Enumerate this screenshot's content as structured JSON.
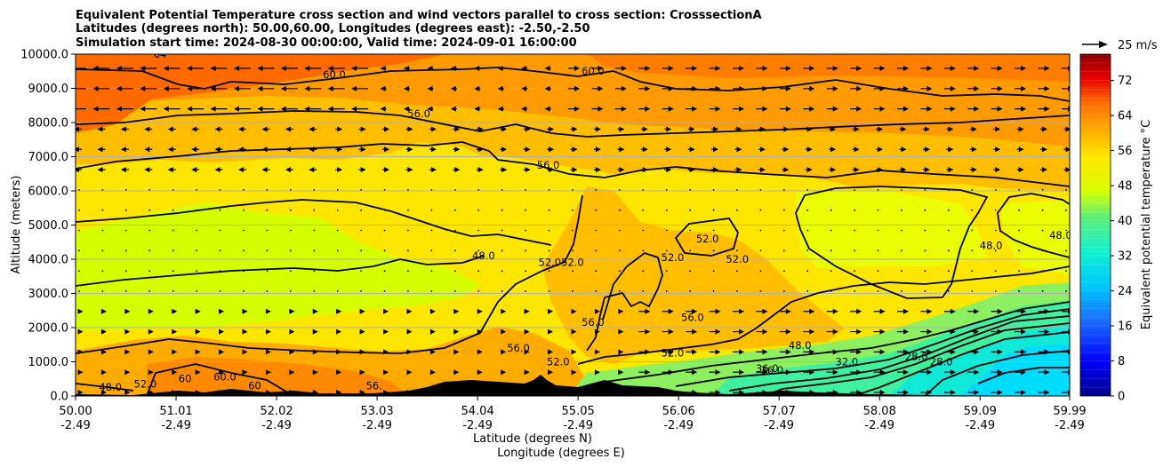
{
  "chart_data": {
    "type": "heatmap",
    "title_lines": [
      "Equivalent Potential Temperature cross section and wind vectors parallel to cross section: CrosssectionA",
      "Latitudes (degrees north): 50.00,60.00, Longitudes (degrees east): -2.50,-2.50",
      "Simulation start time: 2024-08-30 00:00:00, Valid time: 2024-09-01 16:00:00"
    ],
    "ylabel": "Altitude (meters)",
    "xlabel_lat": "Latitude (degrees N)",
    "xlabel_lon": "Longitude (degrees E)",
    "ylim": [
      0,
      10000
    ],
    "xlim": [
      50.0,
      59.99
    ],
    "y_ticks": [
      "0.0",
      "1000.0",
      "2000.0",
      "3000.0",
      "4000.0",
      "5000.0",
      "6000.0",
      "7000.0",
      "8000.0",
      "9000.0",
      "10000.0"
    ],
    "x_ticks": [
      {
        "lat": "50.00",
        "lon": "-2.49"
      },
      {
        "lat": "51.01",
        "lon": "-2.49"
      },
      {
        "lat": "52.02",
        "lon": "-2.49"
      },
      {
        "lat": "53.03",
        "lon": "-2.49"
      },
      {
        "lat": "54.04",
        "lon": "-2.49"
      },
      {
        "lat": "55.05",
        "lon": "-2.49"
      },
      {
        "lat": "56.06",
        "lon": "-2.49"
      },
      {
        "lat": "57.07",
        "lon": "-2.49"
      },
      {
        "lat": "58.08",
        "lon": "-2.49"
      },
      {
        "lat": "59.09",
        "lon": "-2.49"
      },
      {
        "lat": "59.99",
        "lon": "-2.49"
      }
    ],
    "colorbar": {
      "label": "Equivalent potential temperature $^\\circ$C",
      "label_display": "Equivalent potential temperature °C",
      "ticks": [
        "0",
        "8",
        "16",
        "24",
        "32",
        "40",
        "48",
        "56",
        "64",
        "72"
      ],
      "range": [
        0,
        78
      ]
    },
    "quiver_key": "25 m/s",
    "contour_labels": [
      {
        "text": "64",
        "lat": 50.85,
        "alt": 9900
      },
      {
        "text": "60.0",
        "lat": 52.6,
        "alt": 9300
      },
      {
        "text": "56.0",
        "lat": 53.45,
        "alt": 8150
      },
      {
        "text": "60.0",
        "lat": 55.2,
        "alt": 9400
      },
      {
        "text": "56.0",
        "lat": 54.75,
        "alt": 6650
      },
      {
        "text": "48.0",
        "lat": 54.1,
        "alt": 4000
      },
      {
        "text": "52.052.0",
        "lat": 54.88,
        "alt": 3800
      },
      {
        "text": "52.0",
        "lat": 56.35,
        "alt": 4500
      },
      {
        "text": "52.0",
        "lat": 56.0,
        "alt": 3950
      },
      {
        "text": "52.0",
        "lat": 56.65,
        "alt": 3900
      },
      {
        "text": "56.0",
        "lat": 56.2,
        "alt": 2200
      },
      {
        "text": "56.0",
        "lat": 55.2,
        "alt": 2050
      },
      {
        "text": "56.0",
        "lat": 54.45,
        "alt": 1300
      },
      {
        "text": "52.0",
        "lat": 54.85,
        "alt": 900
      },
      {
        "text": "52.0",
        "lat": 56.0,
        "alt": 1150
      },
      {
        "text": "48.0",
        "lat": 57.28,
        "alt": 1380
      },
      {
        "text": "36.0",
        "lat": 56.95,
        "alt": 700
      },
      {
        "text": "36.0",
        "lat": 57.0,
        "alt": 650
      },
      {
        "text": "32.0",
        "lat": 57.75,
        "alt": 900
      },
      {
        "text": "28.0",
        "lat": 58.45,
        "alt": 1050
      },
      {
        "text": "28.0",
        "lat": 58.7,
        "alt": 900
      },
      {
        "text": "48.0",
        "lat": 59.2,
        "alt": 4300
      },
      {
        "text": "48.0",
        "lat": 59.9,
        "alt": 4600
      },
      {
        "text": "48.0",
        "lat": 50.35,
        "alt": 150
      },
      {
        "text": "52.0",
        "lat": 50.7,
        "alt": 250
      },
      {
        "text": "60",
        "lat": 51.1,
        "alt": 400
      },
      {
        "text": "60.0",
        "lat": 51.5,
        "alt": 450
      },
      {
        "text": "60",
        "lat": 51.8,
        "alt": 200
      },
      {
        "text": "56.",
        "lat": 53.0,
        "alt": 200
      }
    ]
  }
}
